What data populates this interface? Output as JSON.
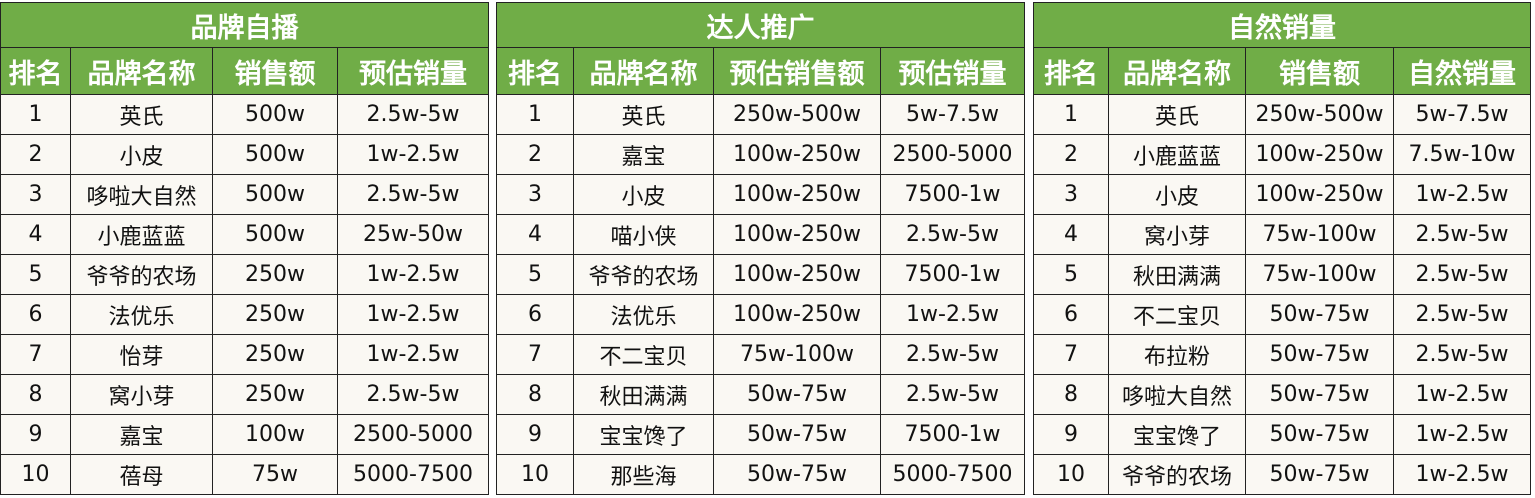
{
  "colors": {
    "header_bg": "#70AD47",
    "header_text": "#FFFFFF",
    "cell_bg": "#FAF8F3"
  },
  "tables": [
    {
      "title": "品牌自播",
      "headers": [
        "排名",
        "品牌名称",
        "销售额",
        "预估销量"
      ],
      "rows": [
        [
          "1",
          "英氏",
          "500w",
          "2.5w-5w"
        ],
        [
          "2",
          "小皮",
          "500w",
          "1w-2.5w"
        ],
        [
          "3",
          "哆啦大自然",
          "500w",
          "2.5w-5w"
        ],
        [
          "4",
          "小鹿蓝蓝",
          "500w",
          "25w-50w"
        ],
        [
          "5",
          "爷爷的农场",
          "250w",
          "1w-2.5w"
        ],
        [
          "6",
          "法优乐",
          "250w",
          "1w-2.5w"
        ],
        [
          "7",
          "怡芽",
          "250w",
          "1w-2.5w"
        ],
        [
          "8",
          "窝小芽",
          "250w",
          "2.5w-5w"
        ],
        [
          "9",
          "嘉宝",
          "100w",
          "2500-5000"
        ],
        [
          "10",
          "蓓母",
          "75w",
          "5000-7500"
        ]
      ]
    },
    {
      "title": "达人推广",
      "headers": [
        "排名",
        "品牌名称",
        "预估销售额",
        "预估销量"
      ],
      "rows": [
        [
          "1",
          "英氏",
          "250w-500w",
          "5w-7.5w"
        ],
        [
          "2",
          "嘉宝",
          "100w-250w",
          "2500-5000"
        ],
        [
          "3",
          "小皮",
          "100w-250w",
          "7500-1w"
        ],
        [
          "4",
          "喵小侠",
          "100w-250w",
          "2.5w-5w"
        ],
        [
          "5",
          "爷爷的农场",
          "100w-250w",
          "7500-1w"
        ],
        [
          "6",
          "法优乐",
          "100w-250w",
          "1w-2.5w"
        ],
        [
          "7",
          "不二宝贝",
          "75w-100w",
          "2.5w-5w"
        ],
        [
          "8",
          "秋田满满",
          "50w-75w",
          "2.5w-5w"
        ],
        [
          "9",
          "宝宝馋了",
          "50w-75w",
          "7500-1w"
        ],
        [
          "10",
          "那些海",
          "50w-75w",
          "5000-7500"
        ]
      ]
    },
    {
      "title": "自然销量",
      "headers": [
        "排名",
        "品牌名称",
        "销售额",
        "自然销量"
      ],
      "rows": [
        [
          "1",
          "英氏",
          "250w-500w",
          "5w-7.5w"
        ],
        [
          "2",
          "小鹿蓝蓝",
          "100w-250w",
          "7.5w-10w"
        ],
        [
          "3",
          "小皮",
          "100w-250w",
          "1w-2.5w"
        ],
        [
          "4",
          "窝小芽",
          "75w-100w",
          "2.5w-5w"
        ],
        [
          "5",
          "秋田满满",
          "75w-100w",
          "2.5w-5w"
        ],
        [
          "6",
          "不二宝贝",
          "50w-75w",
          "2.5w-5w"
        ],
        [
          "7",
          "布拉粉",
          "50w-75w",
          "2.5w-5w"
        ],
        [
          "8",
          "哆啦大自然",
          "50w-75w",
          "1w-2.5w"
        ],
        [
          "9",
          "宝宝馋了",
          "50w-75w",
          "1w-2.5w"
        ],
        [
          "10",
          "爷爷的农场",
          "50w-75w",
          "1w-2.5w"
        ]
      ]
    }
  ]
}
